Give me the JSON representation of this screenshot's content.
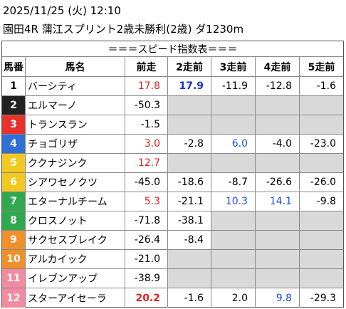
{
  "header": {
    "datetime": "2025/11/25 (火) 12:10",
    "race": "園田4R 蒲江スプリント2歳未勝利(2歳) ダ1230m"
  },
  "table": {
    "title": "＝＝＝スピード指数表＝＝＝",
    "columns": [
      "馬番",
      "馬名",
      "前走",
      "2走前",
      "3走前",
      "4走前",
      "5走前"
    ],
    "rows": [
      [
        "1",
        "バーシティ",
        "17.8",
        "17.9",
        "-11.9",
        "-12.8",
        "-1.6"
      ],
      [
        "2",
        "エルマーノ",
        "-50.3",
        null,
        null,
        null,
        null
      ],
      [
        "3",
        "トランスラン",
        "-1.5",
        null,
        null,
        null,
        null
      ],
      [
        "4",
        "チョゴリザ",
        "3.0",
        "-2.8",
        "6.0",
        "-4.0",
        "-23.0"
      ],
      [
        "5",
        "ククナジンク",
        "12.7",
        null,
        null,
        null,
        null
      ],
      [
        "6",
        "シアワセノクツ",
        "-45.0",
        "-18.6",
        "-8.7",
        "-26.6",
        "-26.0"
      ],
      [
        "7",
        "エターナルチーム",
        "5.3",
        "-21.1",
        "10.3",
        "14.1",
        "-9.8"
      ],
      [
        "8",
        "クロスノット",
        "-71.8",
        "-38.1",
        null,
        null,
        null
      ],
      [
        "9",
        "サクセスブレイク",
        "-26.4",
        "-8.4",
        null,
        null,
        null
      ],
      [
        "10",
        "アルカイック",
        "-21.0",
        null,
        null,
        null,
        null
      ],
      [
        "11",
        "イレブンアップ",
        "-38.9",
        null,
        null,
        null,
        null
      ],
      [
        "12",
        "スターアイセーラ",
        "20.2",
        "-1.6",
        "2.0",
        "9.8",
        "-29.3"
      ]
    ]
  }
}
